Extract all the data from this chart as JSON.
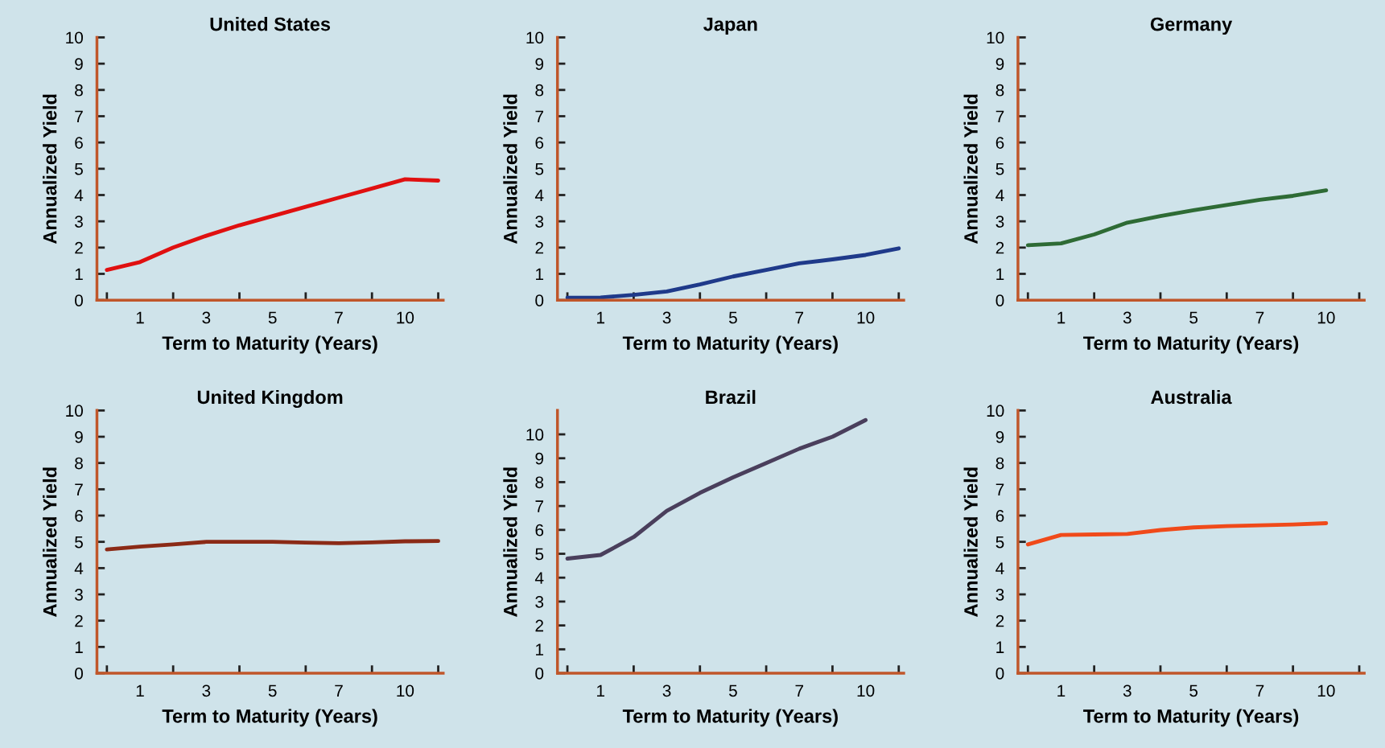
{
  "chart_data": [
    {
      "type": "line",
      "title": "United States",
      "xlabel": "Term to Maturity (Years)",
      "ylabel": "Annualized Yield",
      "categories": [
        null,
        "1",
        null,
        "3",
        null,
        "5",
        null,
        "7",
        null,
        "10",
        null
      ],
      "series": [
        {
          "color": "#e01010",
          "values": [
            1.15,
            1.45,
            2.0,
            2.45,
            2.85,
            3.2,
            3.55,
            3.9,
            4.25,
            4.6,
            4.55
          ]
        }
      ],
      "ylim": [
        0,
        10
      ],
      "yticks": [
        0,
        1,
        2,
        3,
        4,
        5,
        6,
        7,
        8,
        9,
        10
      ]
    },
    {
      "type": "line",
      "title": "Japan",
      "xlabel": "Term to Maturity (Years)",
      "ylabel": "Annualized Yield",
      "categories": [
        null,
        "1",
        null,
        "3",
        null,
        "5",
        null,
        "7",
        null,
        "10",
        null
      ],
      "series": [
        {
          "color": "#1f3a8a",
          "values": [
            0.09,
            0.1,
            0.2,
            0.33,
            0.6,
            0.9,
            1.15,
            1.4,
            1.55,
            1.72,
            1.97
          ]
        }
      ],
      "ylim": [
        0,
        10
      ],
      "yticks": [
        0,
        1,
        2,
        3,
        4,
        5,
        6,
        7,
        8,
        9,
        10
      ]
    },
    {
      "type": "line",
      "title": "Germany",
      "xlabel": "Term to Maturity (Years)",
      "ylabel": "Annualized Yield",
      "categories": [
        null,
        "1",
        null,
        "3",
        null,
        "5",
        null,
        "7",
        null,
        "10",
        null
      ],
      "series": [
        {
          "color": "#2e6b35",
          "values": [
            2.09,
            2.16,
            2.5,
            2.95,
            3.2,
            3.42,
            3.62,
            3.82,
            3.97,
            4.18,
            null
          ]
        }
      ],
      "ylim": [
        0,
        10
      ],
      "yticks": [
        0,
        1,
        2,
        3,
        4,
        5,
        6,
        7,
        8,
        9,
        10
      ]
    },
    {
      "type": "line",
      "title": "United Kingdom",
      "xlabel": "Term to Maturity (Years)",
      "ylabel": "Annualized Yield",
      "categories": [
        null,
        "1",
        null,
        "3",
        null,
        "5",
        null,
        "7",
        null,
        "10",
        null
      ],
      "series": [
        {
          "color": "#8b2a16",
          "values": [
            4.71,
            4.82,
            4.9,
            5.0,
            5.0,
            5.0,
            4.97,
            4.95,
            4.98,
            5.02,
            5.03
          ]
        }
      ],
      "ylim": [
        0,
        10
      ],
      "yticks": [
        0,
        1,
        2,
        3,
        4,
        5,
        6,
        7,
        8,
        9,
        10
      ]
    },
    {
      "type": "line",
      "title": "Brazil",
      "xlabel": "Term to Maturity (Years)",
      "ylabel": "Annualized Yield",
      "categories": [
        null,
        "1",
        null,
        "3",
        null,
        "5",
        null,
        "7",
        null,
        "10",
        null
      ],
      "series": [
        {
          "color": "#4a3f5c",
          "values": [
            4.8,
            4.95,
            5.7,
            6.8,
            7.55,
            8.2,
            8.8,
            9.4,
            9.9,
            10.6,
            null
          ]
        }
      ],
      "ylim": [
        0,
        11
      ],
      "yticks": [
        0,
        1,
        2,
        3,
        4,
        5,
        6,
        7,
        8,
        9,
        10
      ]
    },
    {
      "type": "line",
      "title": "Australia",
      "xlabel": "Term to Maturity (Years)",
      "ylabel": "Annualized Yield",
      "categories": [
        null,
        "1",
        null,
        "3",
        null,
        "5",
        null,
        "7",
        null,
        "10",
        null
      ],
      "series": [
        {
          "color": "#f04a1a",
          "values": [
            4.9,
            5.26,
            5.28,
            5.3,
            5.45,
            5.55,
            5.6,
            5.63,
            5.66,
            5.71,
            null
          ]
        }
      ],
      "ylim": [
        0,
        10
      ],
      "yticks": [
        0,
        1,
        2,
        3,
        4,
        5,
        6,
        7,
        8,
        9,
        10
      ]
    }
  ]
}
